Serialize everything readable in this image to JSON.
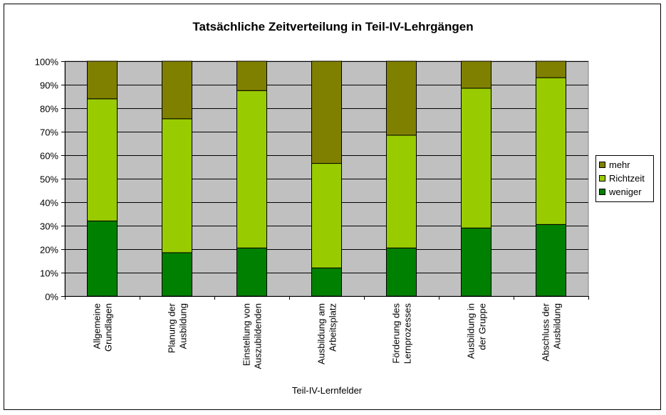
{
  "chart_data": {
    "type": "bar",
    "stacked": "percent",
    "title": "Tatsächliche Zeitverteilung in Teil-IV-Lehrgängen",
    "xlabel": "Teil-IV-Lernfelder",
    "ylabel": "",
    "ylim": [
      0,
      100
    ],
    "yticks": [
      "0%",
      "10%",
      "20%",
      "30%",
      "40%",
      "50%",
      "60%",
      "70%",
      "80%",
      "90%",
      "100%"
    ],
    "grid": true,
    "legend_position": "right",
    "categories": [
      [
        "Allgemeine",
        "Grundlagen"
      ],
      [
        "Planung der",
        "Ausbildung"
      ],
      [
        "Einstellung von",
        "Auszubildenden"
      ],
      [
        "Ausbildung am",
        "Arbeitsplatz"
      ],
      [
        "Förderung des",
        "Lernprozesses"
      ],
      [
        "Ausbildung in",
        "der Gruppe"
      ],
      [
        "Abschluss der",
        "Ausbildung"
      ]
    ],
    "series": [
      {
        "name": "weniger",
        "color": "#008000",
        "values": [
          32,
          18.5,
          20.5,
          12,
          20.5,
          29,
          30.5
        ]
      },
      {
        "name": "Richtzeit",
        "color": "#99CC00",
        "values": [
          52,
          57,
          67,
          44.5,
          48,
          59.5,
          62.5
        ]
      },
      {
        "name": "mehr",
        "color": "#808000",
        "values": [
          16,
          24.5,
          12.5,
          43.5,
          31.5,
          11.5,
          7
        ]
      }
    ],
    "plot_background": "#C0C0C0"
  }
}
